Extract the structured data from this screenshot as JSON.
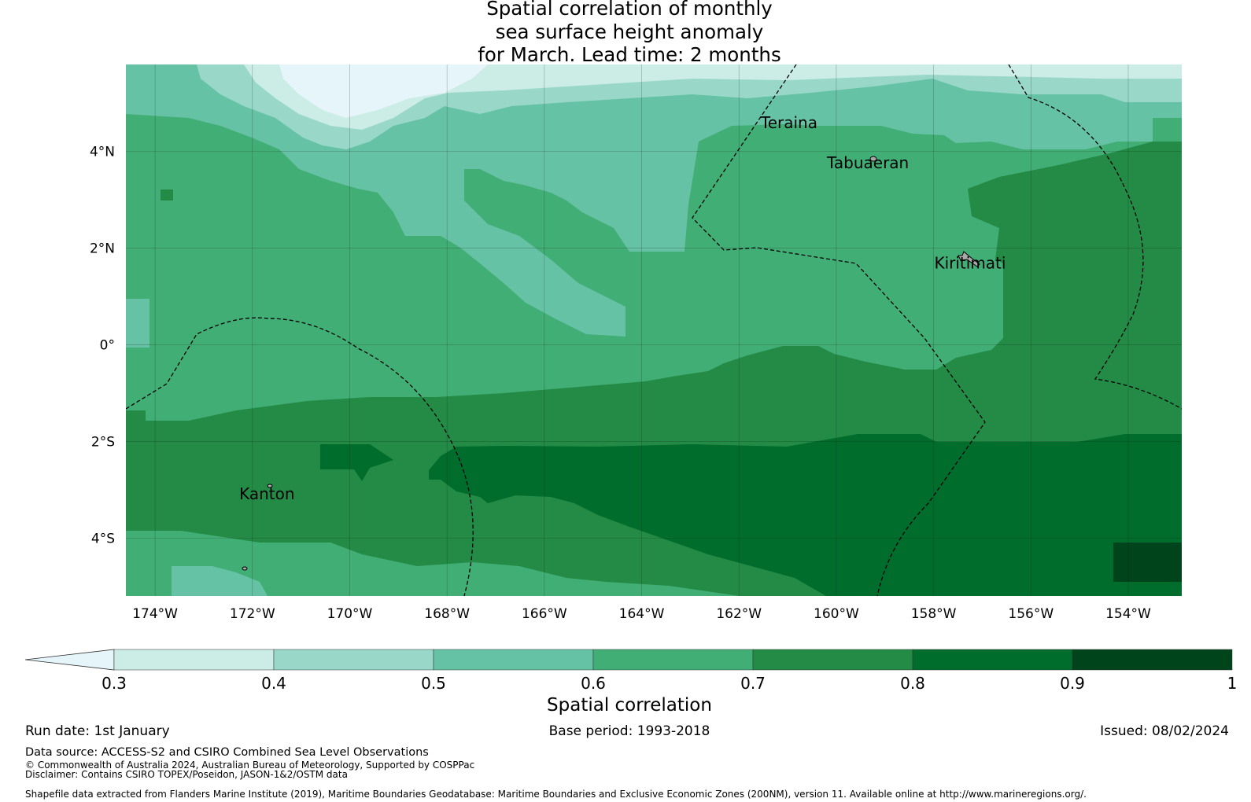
{
  "title": {
    "line1": "Spatial correlation of monthly",
    "line2": "sea surface height anomaly",
    "line3": "for March. Lead time: 2 months"
  },
  "map": {
    "lon_range": [
      -174.6,
      -152.9
    ],
    "lat_range": [
      -5.2,
      5.8
    ],
    "lon_ticks": [
      {
        "value": -174,
        "label": "174°W"
      },
      {
        "value": -172,
        "label": "172°W"
      },
      {
        "value": -170,
        "label": "170°W"
      },
      {
        "value": -168,
        "label": "168°W"
      },
      {
        "value": -166,
        "label": "166°W"
      },
      {
        "value": -164,
        "label": "164°W"
      },
      {
        "value": -162,
        "label": "162°W"
      },
      {
        "value": -160,
        "label": "160°W"
      },
      {
        "value": -158,
        "label": "158°W"
      },
      {
        "value": -156,
        "label": "156°W"
      },
      {
        "value": -154,
        "label": "154°W"
      }
    ],
    "lat_ticks": [
      {
        "value": 4,
        "label": "4°N"
      },
      {
        "value": 2,
        "label": "2°N"
      },
      {
        "value": 0,
        "label": "0°"
      },
      {
        "value": -2,
        "label": "2°S"
      },
      {
        "value": -4,
        "label": "4°S"
      }
    ],
    "places": [
      {
        "name": "Teraina",
        "lon": -160.97,
        "lat": 4.48
      },
      {
        "name": "Tabuaeran",
        "lon": -159.35,
        "lat": 3.65
      },
      {
        "name": "Kiritimati",
        "lon": -157.25,
        "lat": 1.58
      },
      {
        "name": "Kanton",
        "lon": -171.7,
        "lat": -3.2
      }
    ]
  },
  "colorbar": {
    "label": "Spatial correlation",
    "ticks": [
      "0.3",
      "0.4",
      "0.5",
      "0.6",
      "0.7",
      "0.8",
      "0.9",
      "1"
    ],
    "extend": "min",
    "colors": [
      "#e6f5fa",
      "#ccece6",
      "#99d8c9",
      "#66c2a4",
      "#41ae76",
      "#238b45",
      "#006d2c",
      "#00441b"
    ]
  },
  "footer": {
    "run_date": "Run date: 1st January",
    "base_period": "Base period: 1993-2018",
    "issued": "Issued: 08/02/2024",
    "data_source": "Data source: ACCESS-S2 and CSIRO Combined Sea Level Observations",
    "copyright": "© Commonwealth of Australia 2024, Australian Bureau of Meteorology, Supported by COSPPac",
    "disclaimer": "Disclaimer: Contains CSIRO TOPEX/Poseidon, JASON-1&2/OSTM data",
    "shapefile": "Shapefile data extracted from Flanders Marine Institute (2019), Maritime Boundaries Geodatabase: Maritime Boundaries and Exclusive Economic Zones (200NM), version 11. Available online at http://www.marineregions.org/."
  }
}
